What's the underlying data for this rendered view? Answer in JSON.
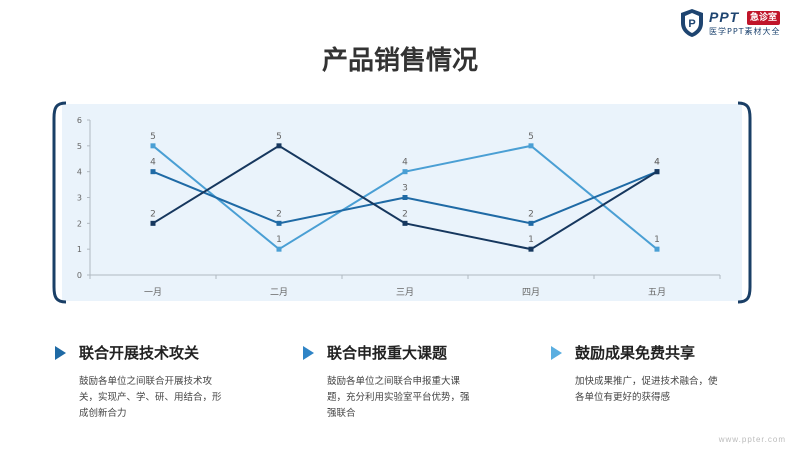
{
  "logo": {
    "brand": "PPT",
    "tag": "急诊室",
    "subtitle": "医学PPT素材大全"
  },
  "title": "产品销售情况",
  "chart_data": {
    "type": "line",
    "categories": [
      "一月",
      "二月",
      "三月",
      "四月",
      "五月"
    ],
    "ylim": [
      0,
      6
    ],
    "yticks": [
      0,
      1,
      2,
      3,
      4,
      5,
      6
    ],
    "grid": false,
    "legend": "none",
    "data_labels": true,
    "series": [
      {
        "values": [
          5,
          1,
          4,
          5,
          1
        ],
        "color": "#4a9fd4"
      },
      {
        "values": [
          4,
          2,
          3,
          2,
          4
        ],
        "color": "#1f6aa5"
      },
      {
        "values": [
          2,
          5,
          2,
          1,
          4
        ],
        "color": "#16375e"
      }
    ]
  },
  "features": [
    {
      "heading": "联合开展技术攻关",
      "body": "鼓励各单位之间联合开展技术攻关，实现产、学、研、用结合，形成创新合力",
      "icon": "chevron-right-icon"
    },
    {
      "heading": "联合申报重大课题",
      "body": "鼓励各单位之间联合申报重大课题，充分利用实验室平台优势，强强联合",
      "icon": "chevron-right-icon"
    },
    {
      "heading": "鼓励成果免费共享",
      "body": "加快成果推广，促进技术融合，使各单位有更好的获得感",
      "icon": "chevron-right-icon"
    }
  ],
  "footer": "www.ppter.com"
}
